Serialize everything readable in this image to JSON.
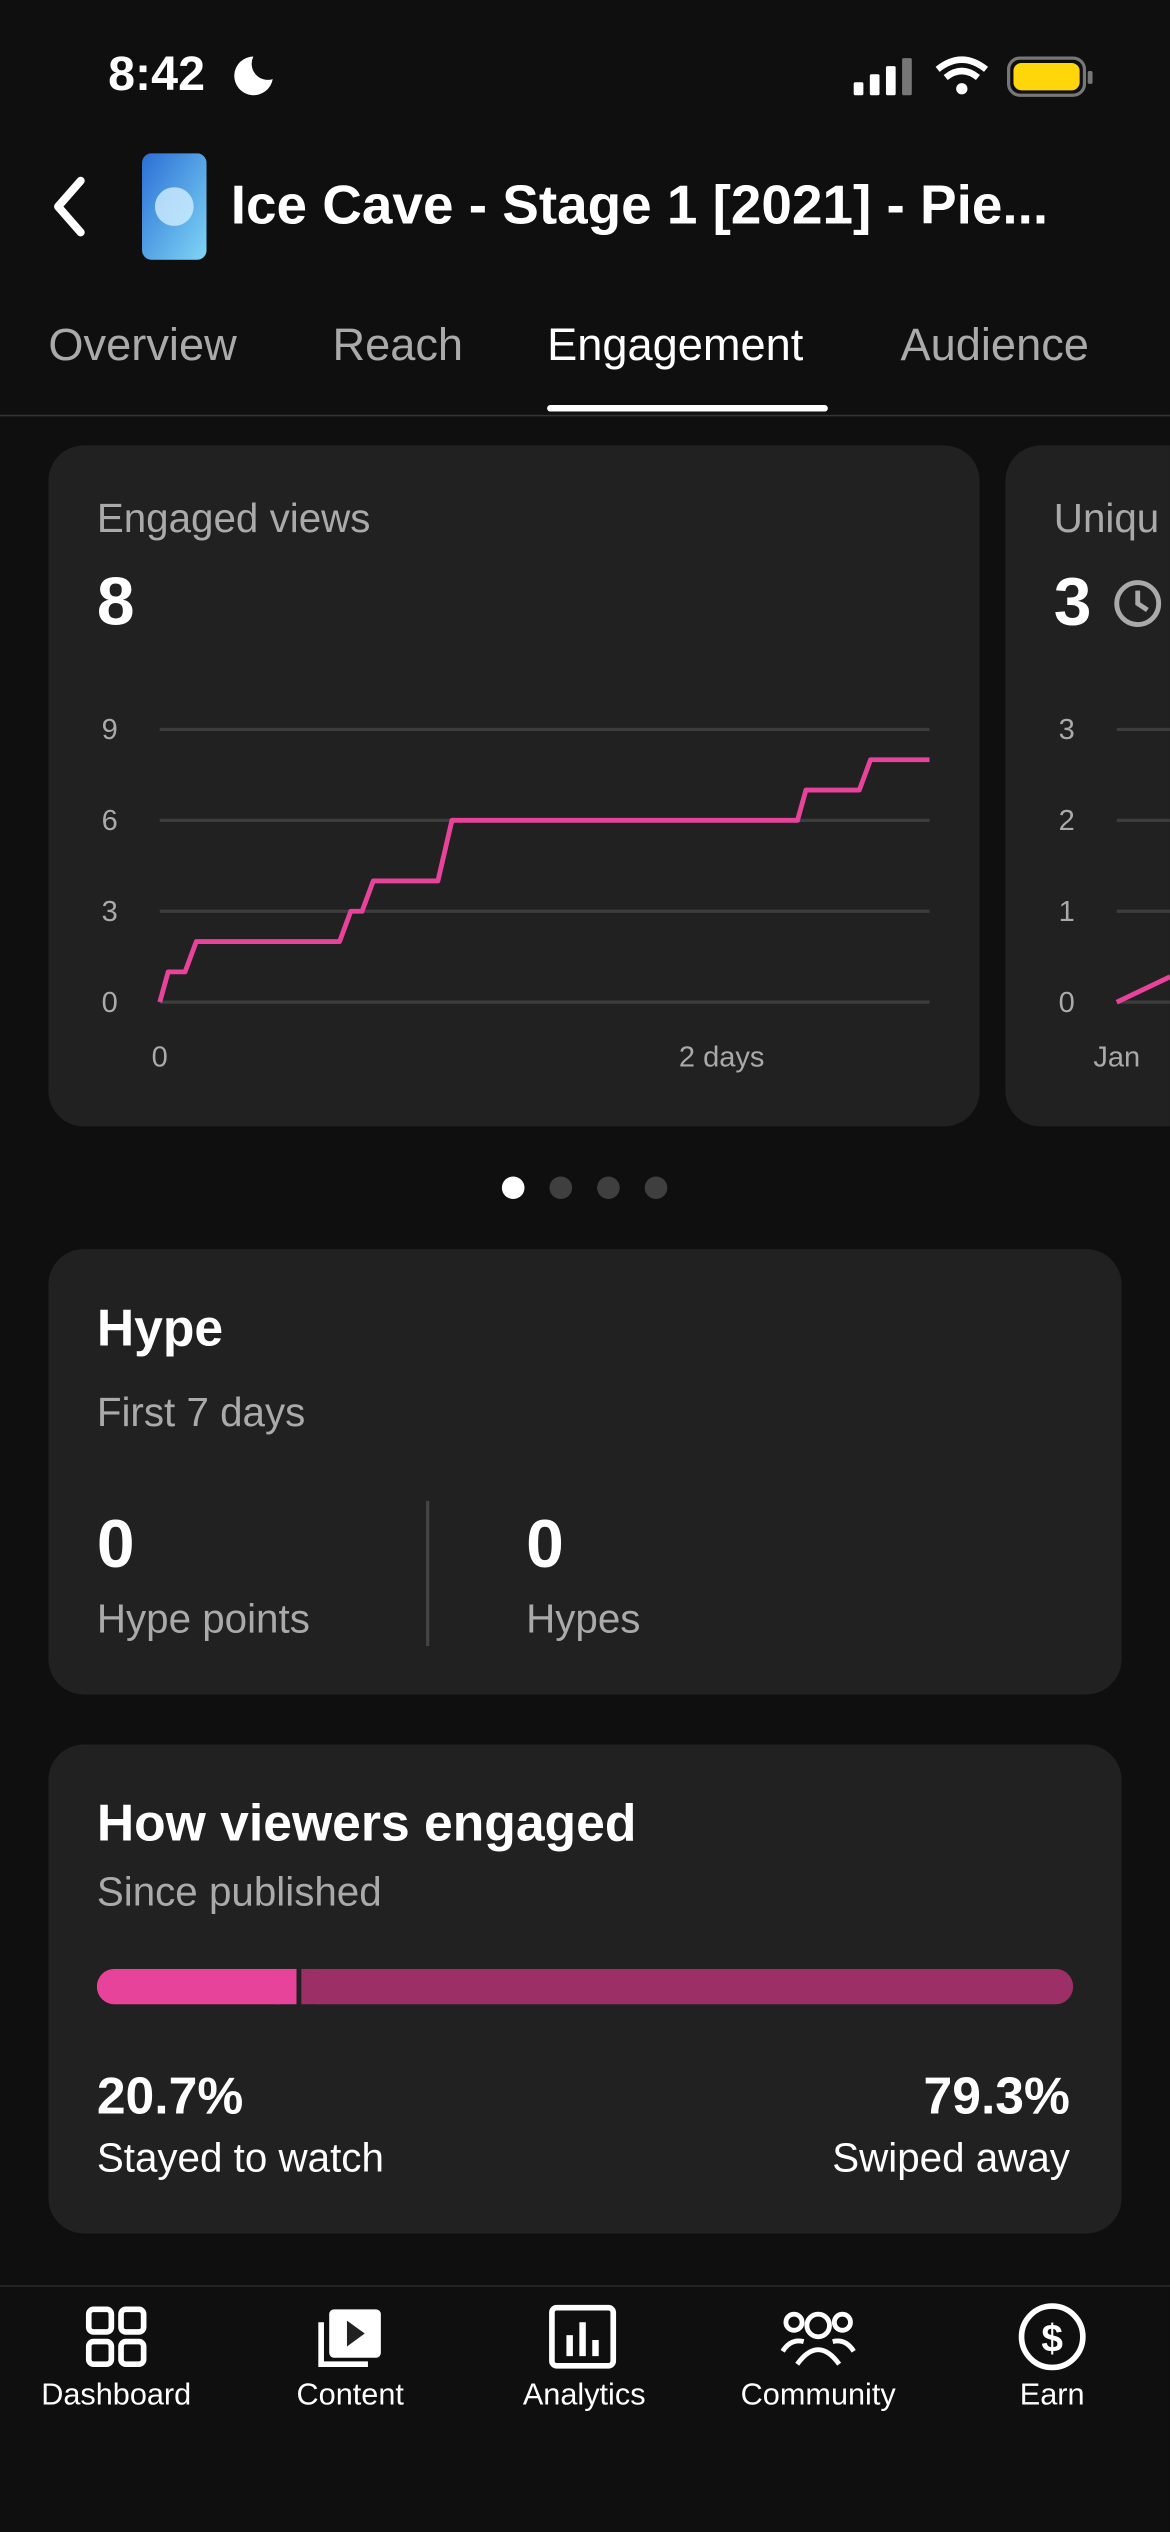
{
  "status_bar": {
    "time": "8:42"
  },
  "header": {
    "title": "Ice Cave - Stage 1 [2021] - Pie..."
  },
  "tabs": {
    "items": [
      "Overview",
      "Reach",
      "Engagement",
      "Audience"
    ],
    "selected_index": 2
  },
  "metric_cards": [
    {
      "label": "Engaged views",
      "value": 8,
      "chart_data": {
        "type": "line",
        "x": [
          0,
          0.03,
          0.09,
          0.13,
          0.64,
          0.68,
          0.72,
          0.76,
          0.99,
          1.04,
          2.27,
          2.3,
          2.49,
          2.53,
          2.74
        ],
        "values": [
          0,
          1,
          1,
          2,
          2,
          3,
          3,
          4,
          4,
          6,
          6,
          7,
          7,
          8,
          8
        ],
        "color": "#e8439a",
        "xlim": [
          0,
          2.74
        ],
        "ylim": [
          0,
          9
        ],
        "xticks": [
          0,
          {
            "value": 2,
            "label": "2 days"
          }
        ],
        "yticks": [
          0,
          3,
          6,
          9
        ],
        "grid": true
      }
    },
    {
      "label": "Uniqu",
      "value": 3,
      "chart_data": {
        "type": "line",
        "x": [
          0,
          0.19
        ],
        "values": [
          0,
          0.28
        ],
        "color": "#e8439a",
        "xlim": [
          0,
          2.74
        ],
        "ylim": [
          0,
          3
        ],
        "xticks": [
          {
            "value": 0,
            "label": "Jan"
          }
        ],
        "yticks": [
          0,
          1,
          2,
          3
        ],
        "grid": true
      }
    }
  ],
  "carousel": {
    "pages": 4,
    "current": 0
  },
  "hype": {
    "title": "Hype",
    "subtitle": "First 7 days",
    "stats": [
      {
        "value": 0,
        "label": "Hype points"
      },
      {
        "value": 0,
        "label": "Hypes"
      }
    ]
  },
  "engagement": {
    "title": "How viewers engaged",
    "subtitle": "Since published",
    "segments": [
      {
        "name": "Stayed to watch",
        "value": 20.7,
        "value_label": "20.7%",
        "color": "#e8439a"
      },
      {
        "name": "Swiped away",
        "value": 79.3,
        "value_label": "79.3%",
        "color": "#9b2f66"
      }
    ]
  },
  "bottom_nav": [
    "Dashboard",
    "Content",
    "Analytics",
    "Community",
    "Earn"
  ]
}
